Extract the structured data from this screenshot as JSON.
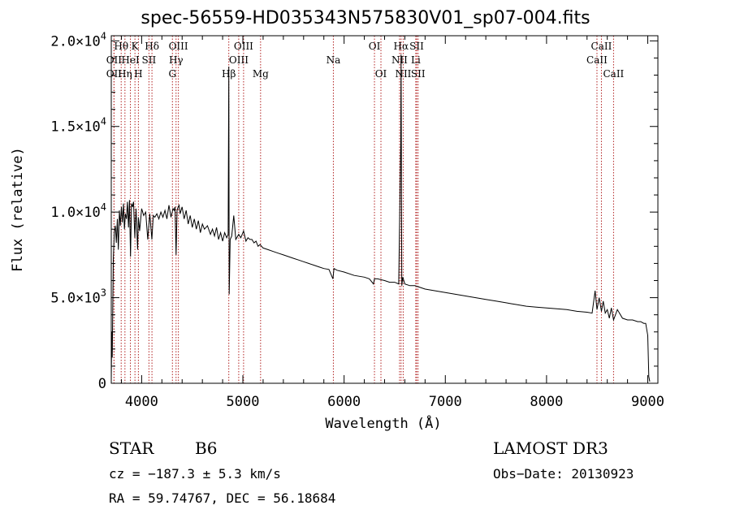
{
  "chart_data": {
    "type": "line",
    "title": "spec-56559-HD035343N575830V01_sp07-004.fits",
    "xlabel": "Wavelength (Å)",
    "ylabel": "Flux (relative)",
    "xlim": [
      3700,
      9100
    ],
    "ylim": [
      0,
      20300
    ],
    "x_ticks": [
      4000,
      5000,
      6000,
      7000,
      8000,
      9000
    ],
    "x_tick_labels": [
      "4000",
      "5000",
      "6000",
      "7000",
      "8000",
      "9000"
    ],
    "y_ticks": [
      0,
      5000,
      10000,
      15000,
      20000
    ],
    "y_tick_labels": [
      {
        "base": "0",
        "exp": ""
      },
      {
        "base": "5.0×10",
        "exp": "3"
      },
      {
        "base": "1.0×10",
        "exp": "4"
      },
      {
        "base": "1.5×10",
        "exp": "4"
      },
      {
        "base": "2.0×10",
        "exp": "4"
      }
    ],
    "series": [
      {
        "name": "spectrum",
        "x": [
          3700,
          3705,
          3710,
          3720,
          3730,
          3740,
          3750,
          3760,
          3770,
          3780,
          3790,
          3800,
          3810,
          3820,
          3830,
          3840,
          3850,
          3860,
          3870,
          3880,
          3890,
          3900,
          3910,
          3920,
          3933,
          3945,
          3960,
          3968,
          3980,
          4000,
          4020,
          4040,
          4060,
          4080,
          4101,
          4115,
          4130,
          4150,
          4170,
          4190,
          4210,
          4230,
          4250,
          4270,
          4290,
          4310,
          4320,
          4330,
          4340,
          4350,
          4360,
          4370,
          4380,
          4400,
          4420,
          4440,
          4460,
          4480,
          4500,
          4520,
          4540,
          4560,
          4580,
          4600,
          4620,
          4650,
          4680,
          4700,
          4720,
          4740,
          4760,
          4780,
          4800,
          4820,
          4840,
          4855,
          4861,
          4865,
          4875,
          4890,
          4910,
          4930,
          4959,
          4980,
          5007,
          5030,
          5050,
          5070,
          5090,
          5110,
          5130,
          5150,
          5170,
          5200,
          5250,
          5300,
          5350,
          5400,
          5450,
          5500,
          5550,
          5600,
          5650,
          5700,
          5750,
          5800,
          5850,
          5890,
          5900,
          5930,
          6000,
          6100,
          6200,
          6250,
          6290,
          6300,
          6330,
          6400,
          6450,
          6500,
          6540,
          6560,
          6563,
          6570,
          6580,
          6600,
          6650,
          6700,
          6750,
          6800,
          6900,
          7000,
          7100,
          7200,
          7300,
          7400,
          7500,
          7600,
          7650,
          7700,
          7800,
          7900,
          8000,
          8100,
          8200,
          8300,
          8400,
          8450,
          8480,
          8498,
          8520,
          8542,
          8560,
          8580,
          8600,
          8620,
          8640,
          8662,
          8700,
          8750,
          8800,
          8850,
          8900,
          8930,
          8960,
          8980,
          9000,
          9010,
          9020
        ],
        "y": [
          200,
          3000,
          1500,
          7200,
          8800,
          9200,
          8200,
          9600,
          7800,
          10100,
          9200,
          10300,
          9400,
          10500,
          9000,
          9900,
          9600,
          10600,
          9100,
          10700,
          7400,
          10500,
          10300,
          10600,
          8500,
          10200,
          7800,
          9700,
          8900,
          10200,
          9800,
          10000,
          8400,
          9900,
          8400,
          9800,
          9700,
          9900,
          9600,
          10000,
          9700,
          10100,
          9600,
          10400,
          9700,
          10200,
          10100,
          10300,
          7500,
          10100,
          10300,
          10400,
          9900,
          10300,
          9600,
          10100,
          9300,
          9800,
          9100,
          9600,
          9000,
          9500,
          8800,
          9300,
          9000,
          9200,
          8700,
          9000,
          8600,
          9100,
          8400,
          8800,
          8300,
          8800,
          8500,
          8700,
          18500,
          5200,
          8400,
          8600,
          9800,
          8400,
          8700,
          8500,
          8900,
          8300,
          8500,
          8400,
          8400,
          8200,
          8300,
          8000,
          8100,
          7900,
          7800,
          7700,
          7600,
          7500,
          7400,
          7300,
          7200,
          7100,
          7000,
          6900,
          6800,
          6700,
          6650,
          6100,
          6700,
          6600,
          6500,
          6300,
          6200,
          6100,
          5800,
          6100,
          6100,
          6000,
          5900,
          5900,
          5800,
          14000,
          19200,
          5700,
          6200,
          5800,
          5700,
          5700,
          5600,
          5500,
          5400,
          5300,
          5200,
          5100,
          5000,
          4900,
          4800,
          4700,
          4650,
          4600,
          4500,
          4450,
          4400,
          4350,
          4300,
          4200,
          4150,
          4100,
          5400,
          4300,
          5000,
          4200,
          4800,
          4100,
          4300,
          3800,
          4400,
          3700,
          4300,
          3800,
          3700,
          3700,
          3600,
          3600,
          3500,
          3500,
          2800,
          400,
          100
        ]
      }
    ],
    "line_markers": [
      {
        "label": "OII",
        "x": 3727,
        "row": 2
      },
      {
        "label": "Hθ",
        "x": 3798,
        "row": 1
      },
      {
        "label": "OII",
        "x": 3727,
        "row": 3
      },
      {
        "label": "Hη",
        "x": 3835,
        "row": 3
      },
      {
        "label": "K",
        "x": 3934,
        "row": 1
      },
      {
        "label": "HeI",
        "x": 3889,
        "row": 2
      },
      {
        "label": "H",
        "x": 3968,
        "row": 3
      },
      {
        "label": "Hδ",
        "x": 4102,
        "row": 1
      },
      {
        "label": "SII",
        "x": 4072,
        "row": 2
      },
      {
        "label": "OIII",
        "x": 4363,
        "row": 1
      },
      {
        "label": "Hγ",
        "x": 4340,
        "row": 2
      },
      {
        "label": "G",
        "x": 4304,
        "row": 3
      },
      {
        "label": "Hβ",
        "x": 4861,
        "row": 3
      },
      {
        "label": "OIII",
        "x": 5007,
        "row": 1
      },
      {
        "label": "OIII",
        "x": 4959,
        "row": 2
      },
      {
        "label": "Mg",
        "x": 5175,
        "row": 3
      },
      {
        "label": "Na",
        "x": 5894,
        "row": 2
      },
      {
        "label": "OI",
        "x": 6300,
        "row": 1
      },
      {
        "label": "OI",
        "x": 6364,
        "row": 3
      },
      {
        "label": "Hα",
        "x": 6563,
        "row": 1
      },
      {
        "label": "NII",
        "x": 6548,
        "row": 2
      },
      {
        "label": "NII",
        "x": 6584,
        "row": 3
      },
      {
        "label": "SII",
        "x": 6717,
        "row": 1
      },
      {
        "label": "Li",
        "x": 6708,
        "row": 2
      },
      {
        "label": "SII",
        "x": 6731,
        "row": 3
      },
      {
        "label": "CaII",
        "x": 8542,
        "row": 1
      },
      {
        "label": "CaII",
        "x": 8498,
        "row": 2
      },
      {
        "label": "CaII",
        "x": 8662,
        "row": 3
      }
    ]
  },
  "info": {
    "object_type": "STAR",
    "subclass": "B6",
    "survey": "LAMOST DR3",
    "cz": "cz = −187.3 ± 5.3 km/s",
    "obs_date": "Obs−Date: 20130923",
    "coords": "RA =  59.74767, DEC =  56.18684"
  }
}
